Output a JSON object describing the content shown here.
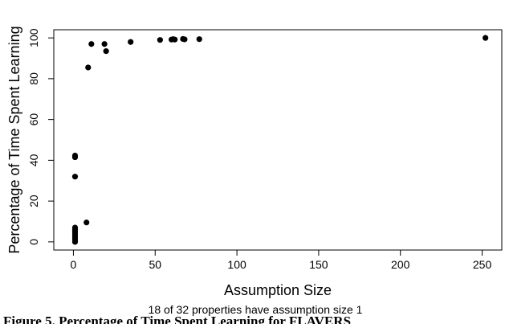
{
  "chart_data": {
    "type": "scatter",
    "xlabel": "Assumption Size",
    "ylabel": "Percentage of Time Spent Learning",
    "subtitle": "18 of 32 properties have assumption size 1",
    "xlim": [
      -12,
      262
    ],
    "ylim": [
      -4,
      104
    ],
    "xticks": [
      0,
      50,
      100,
      150,
      200,
      250
    ],
    "yticks": [
      0,
      20,
      40,
      60,
      80,
      100
    ],
    "grid": false,
    "points": [
      {
        "x": 1,
        "y": 0
      },
      {
        "x": 1,
        "y": 1
      },
      {
        "x": 1,
        "y": 2
      },
      {
        "x": 1,
        "y": 3
      },
      {
        "x": 1,
        "y": 4
      },
      {
        "x": 1,
        "y": 5
      },
      {
        "x": 1,
        "y": 6
      },
      {
        "x": 1,
        "y": 7
      },
      {
        "x": 1,
        "y": 32
      },
      {
        "x": 1,
        "y": 41.5
      },
      {
        "x": 1,
        "y": 42.3
      },
      {
        "x": 8,
        "y": 9.5
      },
      {
        "x": 9,
        "y": 85.5
      },
      {
        "x": 11,
        "y": 97
      },
      {
        "x": 19,
        "y": 97
      },
      {
        "x": 20,
        "y": 93.5
      },
      {
        "x": 35,
        "y": 98
      },
      {
        "x": 53,
        "y": 99
      },
      {
        "x": 60,
        "y": 99.2
      },
      {
        "x": 61,
        "y": 99.4
      },
      {
        "x": 62,
        "y": 99.2
      },
      {
        "x": 67,
        "y": 99.5
      },
      {
        "x": 68,
        "y": 99.3
      },
      {
        "x": 77,
        "y": 99.4
      },
      {
        "x": 252,
        "y": 100
      }
    ]
  },
  "cropped_caption": "Figure 5. Percentage of Time Spent Learning for FLAVERS"
}
